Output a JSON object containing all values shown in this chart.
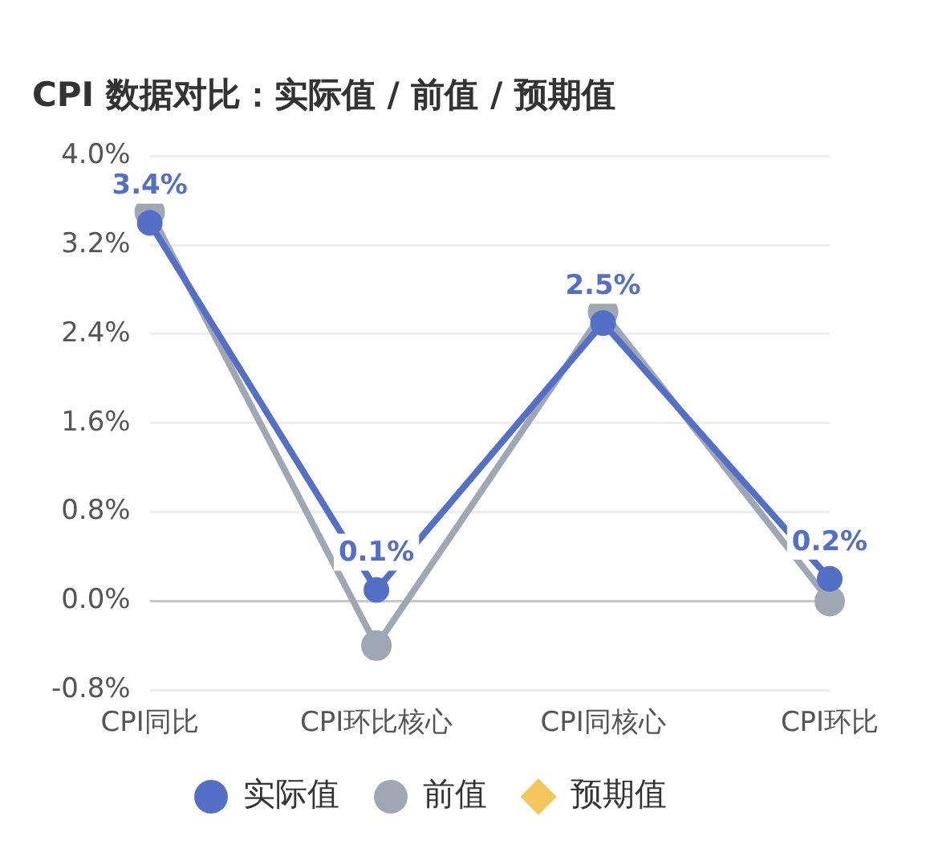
{
  "chart_data": {
    "type": "line",
    "title": "CPI 数据对比：实际值 / 前值 / 预期值",
    "categories": [
      "CPI同比",
      "CPI环比核心",
      "CPI同核心",
      "CPI环比"
    ],
    "series": [
      {
        "name": "实际值",
        "color": "#5470c6",
        "values": [
          3.4,
          0.1,
          2.5,
          0.2
        ],
        "value_labels": [
          "3.4%",
          "0.1%",
          "2.5%",
          "0.2%"
        ]
      },
      {
        "name": "前值",
        "color": "#9fa6b4",
        "values": [
          3.5,
          -0.4,
          2.6,
          0.0
        ]
      },
      {
        "name": "预期值",
        "color": "#f4c65b",
        "values": [
          null,
          null,
          null,
          null
        ],
        "marker": "diamond"
      }
    ],
    "ylim": [
      -0.8,
      4.0
    ],
    "yticks": [
      {
        "value": -0.8,
        "label": "-0.8%"
      },
      {
        "value": 0,
        "label": "0.0%"
      },
      {
        "value": 0.8,
        "label": "0.8%"
      },
      {
        "value": 1.6,
        "label": "1.6%"
      },
      {
        "value": 2.4,
        "label": "2.4%"
      },
      {
        "value": 3.2,
        "label": "3.2%"
      },
      {
        "value": 4.0,
        "label": "4.0%"
      }
    ],
    "grid": "y",
    "legend": "bottom",
    "marker": "circle",
    "line_style": "solid"
  }
}
